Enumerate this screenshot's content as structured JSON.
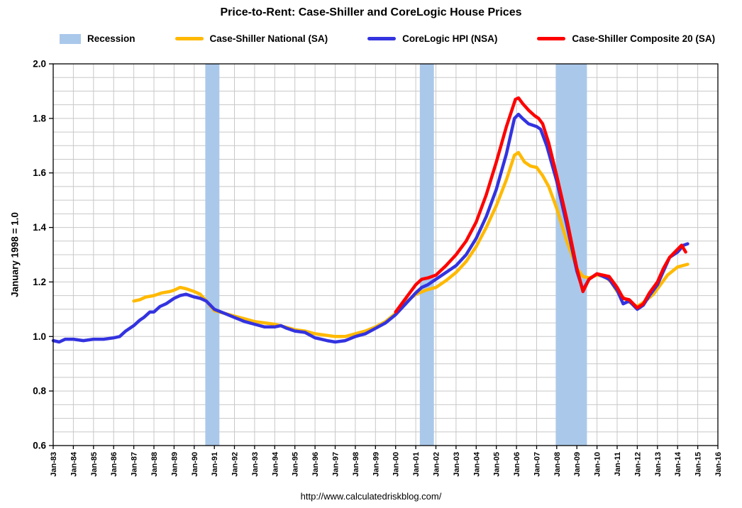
{
  "title": "Price-to-Rent: Case-Shiller and CoreLogic House Prices",
  "footer_url": "http://www.calculatedriskblog.com/",
  "legend": {
    "items": [
      {
        "label": "Recession",
        "color": "#AAC8EA",
        "type": "band"
      },
      {
        "label": "Case-Shiller National (SA)",
        "color": "#FFB900",
        "type": "line"
      },
      {
        "label": "CoreLogic HPI (NSA)",
        "color": "#3333E0",
        "type": "line"
      },
      {
        "label": "Case-Shiller Composite 20 (SA)",
        "color": "#FF0000",
        "type": "line"
      }
    ]
  },
  "chart_data": {
    "type": "line",
    "title": "Price-to-Rent: Case-Shiller and CoreLogic House Prices",
    "xlabel": "",
    "ylabel": "January 1998 = 1.0",
    "xlim": [
      1983,
      2016
    ],
    "ylim": [
      0.6,
      2.0
    ],
    "y_ticks": [
      "0.6",
      "0.8",
      "1.0",
      "1.2",
      "1.4",
      "1.6",
      "1.8",
      "2.0"
    ],
    "y_minor_step": 0.05,
    "grid": true,
    "legend_position": "top",
    "x_tick_labels": [
      "Jan-83",
      "Jan-84",
      "Jan-85",
      "Jan-86",
      "Jan-87",
      "Jan-88",
      "Jan-89",
      "Jan-90",
      "Jan-91",
      "Jan-92",
      "Jan-93",
      "Jan-94",
      "Jan-95",
      "Jan-96",
      "Jan-97",
      "Jan-98",
      "Jan-99",
      "Jan-00",
      "Jan-01",
      "Jan-02",
      "Jan-03",
      "Jan-04",
      "Jan-05",
      "Jan-06",
      "Jan-07",
      "Jan-08",
      "Jan-09",
      "Jan-10",
      "Jan-11",
      "Jan-12",
      "Jan-13",
      "Jan-14",
      "Jan-15",
      "Jan-16"
    ],
    "recession_color": "#AAC8EA",
    "recessions": [
      [
        1990.55,
        1991.25
      ],
      [
        2001.2,
        2001.9
      ],
      [
        2007.95,
        2009.5
      ]
    ],
    "series": [
      {
        "name": "Case-Shiller National (SA)",
        "color": "#FFB900",
        "width": 4.5,
        "points": [
          [
            1987.0,
            1.13
          ],
          [
            1987.3,
            1.135
          ],
          [
            1987.6,
            1.145
          ],
          [
            1988.0,
            1.15
          ],
          [
            1988.4,
            1.16
          ],
          [
            1988.8,
            1.165
          ],
          [
            1989.0,
            1.17
          ],
          [
            1989.3,
            1.18
          ],
          [
            1989.6,
            1.175
          ],
          [
            1990.0,
            1.165
          ],
          [
            1990.3,
            1.155
          ],
          [
            1990.6,
            1.13
          ],
          [
            1991.0,
            1.095
          ],
          [
            1991.5,
            1.085
          ],
          [
            1992.0,
            1.075
          ],
          [
            1992.5,
            1.065
          ],
          [
            1993.0,
            1.055
          ],
          [
            1993.5,
            1.05
          ],
          [
            1994.0,
            1.045
          ],
          [
            1994.5,
            1.035
          ],
          [
            1995.0,
            1.025
          ],
          [
            1995.5,
            1.02
          ],
          [
            1996.0,
            1.01
          ],
          [
            1996.5,
            1.005
          ],
          [
            1997.0,
            1.0
          ],
          [
            1997.5,
            1.0
          ],
          [
            1998.0,
            1.01
          ],
          [
            1998.5,
            1.02
          ],
          [
            1999.0,
            1.035
          ],
          [
            1999.5,
            1.055
          ],
          [
            2000.0,
            1.085
          ],
          [
            2000.5,
            1.125
          ],
          [
            2001.0,
            1.155
          ],
          [
            2001.5,
            1.17
          ],
          [
            2002.0,
            1.18
          ],
          [
            2002.5,
            1.205
          ],
          [
            2003.0,
            1.235
          ],
          [
            2003.5,
            1.275
          ],
          [
            2004.0,
            1.33
          ],
          [
            2004.5,
            1.4
          ],
          [
            2005.0,
            1.48
          ],
          [
            2005.5,
            1.575
          ],
          [
            2005.9,
            1.665
          ],
          [
            2006.1,
            1.675
          ],
          [
            2006.4,
            1.64
          ],
          [
            2006.7,
            1.625
          ],
          [
            2007.0,
            1.62
          ],
          [
            2007.3,
            1.59
          ],
          [
            2007.6,
            1.55
          ],
          [
            2008.0,
            1.47
          ],
          [
            2008.5,
            1.35
          ],
          [
            2009.0,
            1.25
          ],
          [
            2009.3,
            1.22
          ],
          [
            2009.6,
            1.215
          ],
          [
            2010.0,
            1.225
          ],
          [
            2010.4,
            1.22
          ],
          [
            2010.7,
            1.2
          ],
          [
            2011.0,
            1.165
          ],
          [
            2011.5,
            1.13
          ],
          [
            2012.0,
            1.11
          ],
          [
            2012.4,
            1.13
          ],
          [
            2012.8,
            1.155
          ],
          [
            2013.0,
            1.175
          ],
          [
            2013.5,
            1.225
          ],
          [
            2014.0,
            1.255
          ],
          [
            2014.5,
            1.265
          ]
        ]
      },
      {
        "name": "CoreLogic HPI (NSA)",
        "color": "#3333E0",
        "width": 4.5,
        "points": [
          [
            1983.0,
            0.985
          ],
          [
            1983.3,
            0.98
          ],
          [
            1983.6,
            0.99
          ],
          [
            1984.0,
            0.99
          ],
          [
            1984.5,
            0.985
          ],
          [
            1985.0,
            0.99
          ],
          [
            1985.5,
            0.99
          ],
          [
            1986.0,
            0.995
          ],
          [
            1986.3,
            1.0
          ],
          [
            1986.6,
            1.02
          ],
          [
            1987.0,
            1.04
          ],
          [
            1987.3,
            1.06
          ],
          [
            1987.5,
            1.07
          ],
          [
            1987.8,
            1.09
          ],
          [
            1988.0,
            1.09
          ],
          [
            1988.3,
            1.11
          ],
          [
            1988.6,
            1.12
          ],
          [
            1989.0,
            1.14
          ],
          [
            1989.3,
            1.15
          ],
          [
            1989.6,
            1.155
          ],
          [
            1990.0,
            1.145
          ],
          [
            1990.3,
            1.14
          ],
          [
            1990.6,
            1.13
          ],
          [
            1991.0,
            1.1
          ],
          [
            1991.5,
            1.085
          ],
          [
            1992.0,
            1.07
          ],
          [
            1992.5,
            1.055
          ],
          [
            1993.0,
            1.045
          ],
          [
            1993.5,
            1.035
          ],
          [
            1994.0,
            1.035
          ],
          [
            1994.3,
            1.04
          ],
          [
            1994.6,
            1.03
          ],
          [
            1995.0,
            1.02
          ],
          [
            1995.5,
            1.015
          ],
          [
            1996.0,
            0.995
          ],
          [
            1996.3,
            0.99
          ],
          [
            1996.6,
            0.985
          ],
          [
            1997.0,
            0.98
          ],
          [
            1997.5,
            0.985
          ],
          [
            1998.0,
            1.0
          ],
          [
            1998.5,
            1.01
          ],
          [
            1999.0,
            1.03
          ],
          [
            1999.5,
            1.05
          ],
          [
            2000.0,
            1.08
          ],
          [
            2000.5,
            1.12
          ],
          [
            2001.0,
            1.16
          ],
          [
            2001.3,
            1.18
          ],
          [
            2001.6,
            1.19
          ],
          [
            2002.0,
            1.21
          ],
          [
            2002.5,
            1.235
          ],
          [
            2003.0,
            1.26
          ],
          [
            2003.5,
            1.3
          ],
          [
            2004.0,
            1.36
          ],
          [
            2004.5,
            1.44
          ],
          [
            2005.0,
            1.54
          ],
          [
            2005.5,
            1.67
          ],
          [
            2005.9,
            1.8
          ],
          [
            2006.1,
            1.815
          ],
          [
            2006.3,
            1.8
          ],
          [
            2006.6,
            1.78
          ],
          [
            2007.0,
            1.77
          ],
          [
            2007.2,
            1.76
          ],
          [
            2007.5,
            1.7
          ],
          [
            2008.0,
            1.57
          ],
          [
            2008.5,
            1.41
          ],
          [
            2009.0,
            1.24
          ],
          [
            2009.3,
            1.17
          ],
          [
            2009.6,
            1.21
          ],
          [
            2010.0,
            1.23
          ],
          [
            2010.3,
            1.22
          ],
          [
            2010.6,
            1.21
          ],
          [
            2011.0,
            1.17
          ],
          [
            2011.3,
            1.12
          ],
          [
            2011.6,
            1.13
          ],
          [
            2012.0,
            1.1
          ],
          [
            2012.3,
            1.115
          ],
          [
            2012.6,
            1.15
          ],
          [
            2013.0,
            1.19
          ],
          [
            2013.3,
            1.24
          ],
          [
            2013.6,
            1.29
          ],
          [
            2014.0,
            1.31
          ],
          [
            2014.3,
            1.335
          ],
          [
            2014.5,
            1.34
          ]
        ]
      },
      {
        "name": "Case-Shiller Composite 20 (SA)",
        "color": "#FF0000",
        "width": 4.5,
        "points": [
          [
            2000.0,
            1.09
          ],
          [
            2000.5,
            1.14
          ],
          [
            2001.0,
            1.19
          ],
          [
            2001.3,
            1.21
          ],
          [
            2001.6,
            1.215
          ],
          [
            2002.0,
            1.225
          ],
          [
            2002.5,
            1.26
          ],
          [
            2003.0,
            1.3
          ],
          [
            2003.5,
            1.35
          ],
          [
            2004.0,
            1.42
          ],
          [
            2004.5,
            1.52
          ],
          [
            2005.0,
            1.64
          ],
          [
            2005.5,
            1.77
          ],
          [
            2005.95,
            1.87
          ],
          [
            2006.1,
            1.875
          ],
          [
            2006.3,
            1.855
          ],
          [
            2006.6,
            1.83
          ],
          [
            2006.9,
            1.81
          ],
          [
            2007.1,
            1.8
          ],
          [
            2007.3,
            1.78
          ],
          [
            2007.6,
            1.71
          ],
          [
            2008.0,
            1.59
          ],
          [
            2008.5,
            1.43
          ],
          [
            2009.0,
            1.25
          ],
          [
            2009.3,
            1.165
          ],
          [
            2009.6,
            1.21
          ],
          [
            2010.0,
            1.23
          ],
          [
            2010.3,
            1.225
          ],
          [
            2010.6,
            1.22
          ],
          [
            2011.0,
            1.18
          ],
          [
            2011.3,
            1.14
          ],
          [
            2011.6,
            1.135
          ],
          [
            2012.0,
            1.105
          ],
          [
            2012.3,
            1.12
          ],
          [
            2012.6,
            1.16
          ],
          [
            2013.0,
            1.2
          ],
          [
            2013.3,
            1.25
          ],
          [
            2013.6,
            1.29
          ],
          [
            2014.0,
            1.32
          ],
          [
            2014.2,
            1.335
          ],
          [
            2014.4,
            1.31
          ]
        ]
      }
    ]
  }
}
